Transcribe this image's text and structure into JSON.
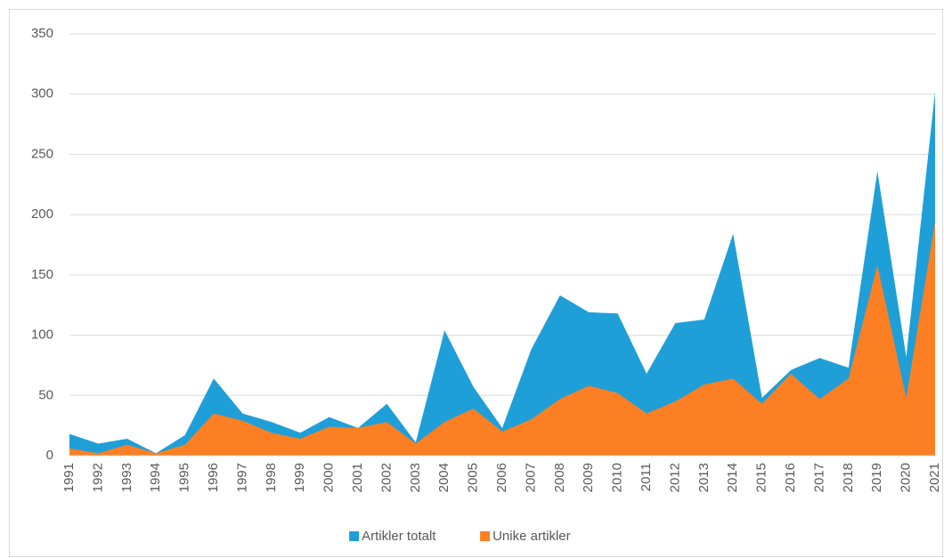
{
  "chart_data": {
    "type": "area",
    "categories": [
      "1991",
      "1992",
      "1993",
      "1994",
      "1995",
      "1996",
      "1997",
      "1998",
      "1999",
      "2000",
      "2001",
      "2002",
      "2003",
      "2004",
      "2005",
      "2006",
      "2007",
      "2008",
      "2009",
      "2010",
      "2011",
      "2012",
      "2013",
      "2014",
      "2015",
      "2016",
      "2017",
      "2018",
      "2019",
      "2020",
      "2021"
    ],
    "series": [
      {
        "name": "Artikler totalt",
        "color": "#1f9fd8",
        "values": [
          18,
          10,
          14,
          2,
          17,
          64,
          35,
          28,
          19,
          32,
          23,
          43,
          11,
          104,
          57,
          23,
          88,
          133,
          119,
          118,
          68,
          110,
          113,
          184,
          48,
          71,
          81,
          73,
          236,
          82,
          302
        ]
      },
      {
        "name": "Unike artikler",
        "color": "#fd7f23",
        "values": [
          6,
          2,
          9,
          2,
          9,
          35,
          29,
          19,
          14,
          24,
          23,
          28,
          10,
          28,
          39,
          20,
          30,
          47,
          58,
          52,
          35,
          45,
          59,
          64,
          43,
          68,
          47,
          64,
          158,
          48,
          194
        ]
      }
    ],
    "ylim": [
      0,
      350
    ],
    "yticks": [
      0,
      50,
      100,
      150,
      200,
      250,
      300,
      350
    ],
    "grid": true,
    "legend": "bottom"
  }
}
